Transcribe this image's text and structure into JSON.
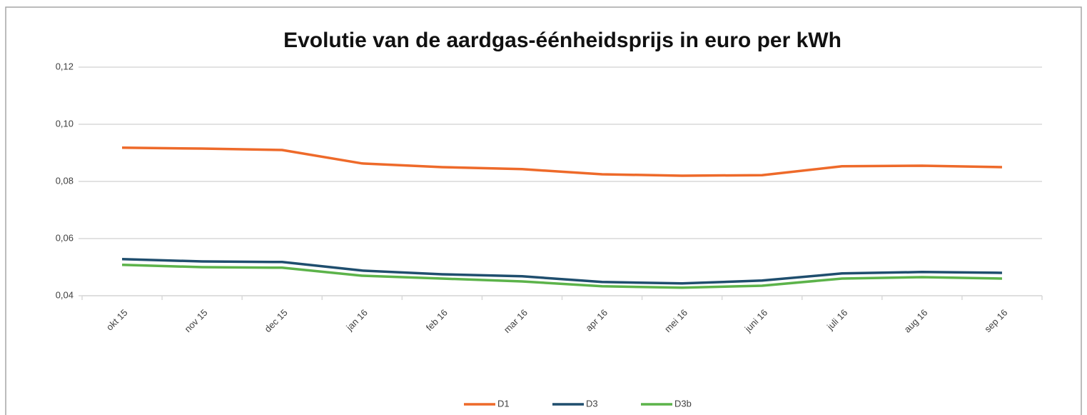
{
  "chart_data": {
    "type": "line",
    "title": "Evolutie van de aardgas-éénheidsprijs in euro per kWh",
    "categories": [
      "okt 15",
      "nov 15",
      "dec 15",
      "jan 16",
      "feb 16",
      "mar 16",
      "apr 16",
      "mei 16",
      "juni 16",
      "juli 16",
      "aug 16",
      "sep 16"
    ],
    "series": [
      {
        "name": "D1",
        "color": "#ee6a2a",
        "values": [
          0.0918,
          0.0915,
          0.091,
          0.0863,
          0.085,
          0.0843,
          0.0825,
          0.082,
          0.0822,
          0.0853,
          0.0855,
          0.085
        ]
      },
      {
        "name": "D3",
        "color": "#1f4e6e",
        "values": [
          0.0528,
          0.052,
          0.0518,
          0.0488,
          0.0475,
          0.0468,
          0.0448,
          0.0443,
          0.0453,
          0.0478,
          0.0483,
          0.048
        ]
      },
      {
        "name": "D3b",
        "color": "#5cb34a",
        "values": [
          0.0508,
          0.05,
          0.0498,
          0.047,
          0.046,
          0.045,
          0.0433,
          0.0428,
          0.0435,
          0.046,
          0.0465,
          0.046
        ]
      }
    ],
    "ylim": [
      0.04,
      0.12
    ],
    "yticks": [
      {
        "value": 0.04,
        "label": "0,04"
      },
      {
        "value": 0.06,
        "label": "0,06"
      },
      {
        "value": 0.08,
        "label": "0,08"
      },
      {
        "value": 0.1,
        "label": "0,10"
      },
      {
        "value": 0.12,
        "label": "0,12"
      }
    ],
    "grid": true,
    "legend": "bottom"
  }
}
